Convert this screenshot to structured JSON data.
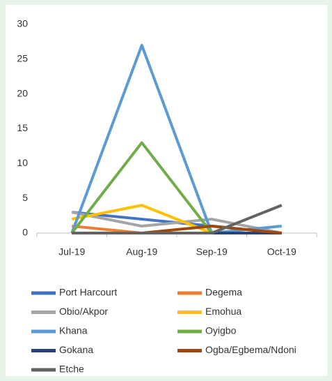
{
  "chart_data": {
    "type": "line",
    "categories": [
      "Jul-19",
      "Aug-19",
      "Sep-19",
      "Oct-19"
    ],
    "series": [
      {
        "name": "Port Harcourt",
        "color": "#4472c4",
        "values": [
          3,
          2,
          1,
          0
        ]
      },
      {
        "name": "Degema",
        "color": "#ed7d31",
        "values": [
          1,
          0,
          0,
          0
        ]
      },
      {
        "name": "Obio/Akpor",
        "color": "#a5a5a5",
        "values": [
          3,
          1,
          2,
          0
        ]
      },
      {
        "name": "Emohua",
        "color": "#ffc000",
        "values": [
          2,
          4,
          0,
          0
        ]
      },
      {
        "name": "Khana",
        "color": "#5b9bd5",
        "values": [
          0,
          27,
          0,
          1
        ]
      },
      {
        "name": "Oyigbo",
        "color": "#70ad47",
        "values": [
          0,
          13,
          0,
          0
        ]
      },
      {
        "name": "Gokana",
        "color": "#264478",
        "values": [
          0,
          0,
          0,
          0
        ]
      },
      {
        "name": "Ogba/Egbema/Ndoni",
        "color": "#9e480e",
        "values": [
          0,
          0,
          1,
          0
        ]
      },
      {
        "name": "Etche",
        "color": "#636363",
        "values": [
          0,
          0,
          0,
          4
        ]
      }
    ],
    "ylim": [
      0,
      30
    ],
    "yticks": [
      0,
      5,
      10,
      15,
      20,
      25,
      30
    ],
    "grid": false,
    "legend": "bottom"
  }
}
